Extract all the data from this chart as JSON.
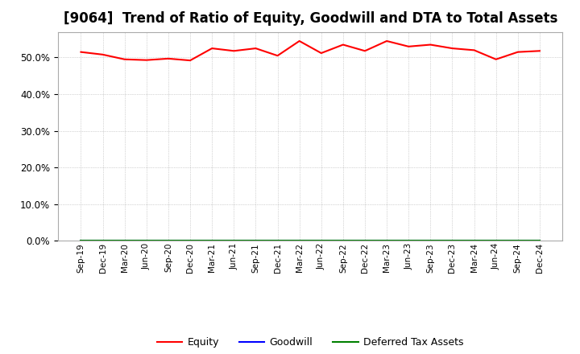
{
  "title": "[9064]  Trend of Ratio of Equity, Goodwill and DTA to Total Assets",
  "x_labels": [
    "Sep-19",
    "Dec-19",
    "Mar-20",
    "Jun-20",
    "Sep-20",
    "Dec-20",
    "Mar-21",
    "Jun-21",
    "Sep-21",
    "Dec-21",
    "Mar-22",
    "Jun-22",
    "Sep-22",
    "Dec-22",
    "Mar-23",
    "Jun-23",
    "Sep-23",
    "Dec-23",
    "Mar-24",
    "Jun-24",
    "Sep-24",
    "Dec-24"
  ],
  "equity": [
    51.5,
    50.8,
    49.5,
    49.3,
    49.7,
    49.2,
    52.5,
    51.8,
    52.5,
    50.5,
    54.5,
    51.2,
    53.5,
    51.8,
    54.5,
    53.0,
    53.5,
    52.5,
    52.0,
    49.5,
    51.5,
    51.8
  ],
  "goodwill": [
    0.0,
    0.0,
    0.0,
    0.0,
    0.0,
    0.0,
    0.0,
    0.0,
    0.0,
    0.0,
    0.0,
    0.0,
    0.0,
    0.0,
    0.0,
    0.0,
    0.0,
    0.0,
    0.0,
    0.0,
    0.0,
    0.0
  ],
  "dta": [
    0.0,
    0.0,
    0.0,
    0.0,
    0.0,
    0.0,
    0.0,
    0.0,
    0.0,
    0.0,
    0.0,
    0.0,
    0.0,
    0.0,
    0.0,
    0.0,
    0.0,
    0.0,
    0.0,
    0.0,
    0.0,
    0.0
  ],
  "equity_color": "#ff0000",
  "goodwill_color": "#0000ff",
  "dta_color": "#008000",
  "ylim": [
    0,
    57
  ],
  "yticks": [
    0.0,
    10.0,
    20.0,
    30.0,
    40.0,
    50.0
  ],
  "background_color": "#ffffff",
  "plot_bg_color": "#ffffff",
  "grid_color": "#999999",
  "title_fontsize": 12,
  "legend_labels": [
    "Equity",
    "Goodwill",
    "Deferred Tax Assets"
  ]
}
